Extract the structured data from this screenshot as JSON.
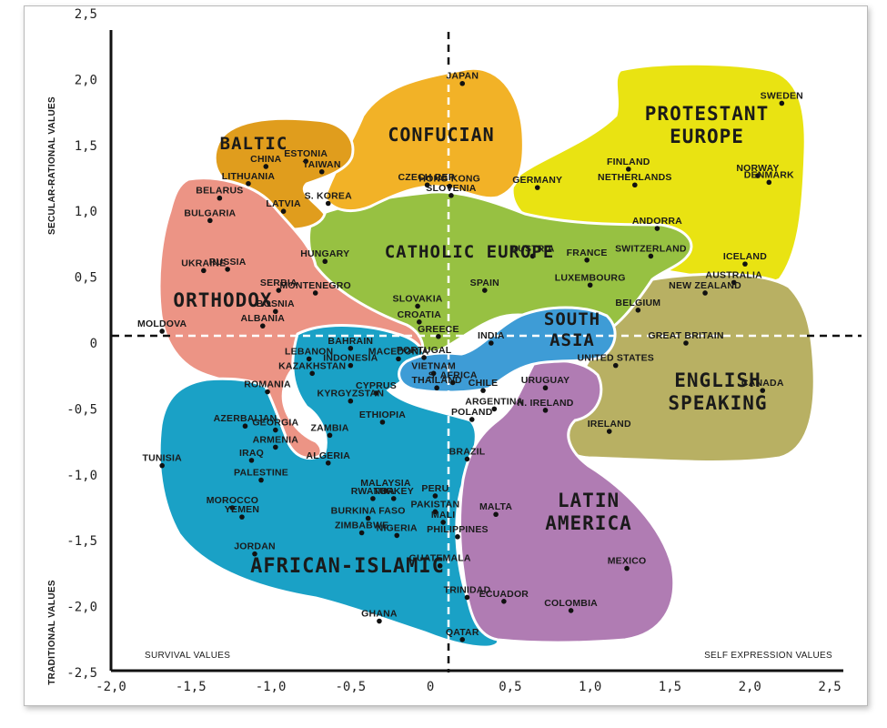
{
  "chart_data": {
    "type": "scatter",
    "xlim": [
      -2.0,
      2.5
    ],
    "ylim": [
      -2.5,
      2.5
    ],
    "x_ticks": [
      "-2,0",
      "-1,5",
      "-1,0",
      "-0,5",
      "0",
      "0,5",
      "1,0",
      "1,5",
      "2,0",
      "2,5"
    ],
    "y_ticks": [
      "2,5",
      "2,0",
      "1,5",
      "1,0",
      "0,5",
      "0",
      "-0,5",
      "-1,0",
      "-1,5",
      "-2,0",
      "-2,5"
    ],
    "y_label_top": "SECULAR-RATIONAL VALUES",
    "y_label_bottom": "TRADITIONAL VALUES",
    "x_label_left": "SURVIVAL VALUES",
    "x_label_right": "SELF EXPRESSION VALUES",
    "regions": [
      {
        "name": "PROTESTANT\nEUROPE",
        "color": "#e9e312"
      },
      {
        "name": "ENGLISH\nSPEAKING",
        "color": "#b8b063"
      },
      {
        "name": "CATHOLIC EUROPE",
        "color": "#97c142"
      },
      {
        "name": "CONFUCIAN",
        "color": "#f2b227"
      },
      {
        "name": "BALTIC",
        "color": "#e09d1d"
      },
      {
        "name": "ORTHODOX",
        "color": "#ec9485"
      },
      {
        "name": "AFRICAN-ISLAMIC",
        "color": "#1aa1c6"
      },
      {
        "name": "LATIN\nAMERICA",
        "color": "#b07cb3"
      },
      {
        "name": "SOUTH\nASIA",
        "color": "#3e9cd6"
      }
    ],
    "points": [
      {
        "name": "JAPAN",
        "x": 0.2,
        "y": 1.97
      },
      {
        "name": "SWEDEN",
        "x": 2.2,
        "y": 1.82
      },
      {
        "name": "ESTONIA",
        "x": -0.78,
        "y": 1.38
      },
      {
        "name": "LITHUANIA",
        "x": -1.14,
        "y": 1.21
      },
      {
        "name": "CHINA",
        "x": -1.03,
        "y": 1.34
      },
      {
        "name": "TAIWAN",
        "x": -0.68,
        "y": 1.3
      },
      {
        "name": "HONG KONG",
        "x": 0.12,
        "y": 1.19
      },
      {
        "name": "CZECH REP.",
        "x": -0.02,
        "y": 1.2
      },
      {
        "name": "SLOVENIA",
        "x": 0.13,
        "y": 1.12
      },
      {
        "name": "FINLAND",
        "x": 1.24,
        "y": 1.32
      },
      {
        "name": "NORWAY",
        "x": 2.05,
        "y": 1.27
      },
      {
        "name": "NETHERLANDS",
        "x": 1.28,
        "y": 1.2
      },
      {
        "name": "DENMARK",
        "x": 2.12,
        "y": 1.22
      },
      {
        "name": "GERMANY",
        "x": 0.67,
        "y": 1.18
      },
      {
        "name": "BELARUS",
        "x": -1.32,
        "y": 1.1
      },
      {
        "name": "BULGARIA",
        "x": -1.38,
        "y": 0.93
      },
      {
        "name": "LATVIA",
        "x": -0.92,
        "y": 1.0
      },
      {
        "name": "S. KOREA",
        "x": -0.64,
        "y": 1.06
      },
      {
        "name": "ANDORRA",
        "x": 1.42,
        "y": 0.87
      },
      {
        "name": "HUNGARY",
        "x": -0.66,
        "y": 0.62
      },
      {
        "name": "UKRAINE",
        "x": -1.42,
        "y": 0.55
      },
      {
        "name": "RUSSIA",
        "x": -1.27,
        "y": 0.56
      },
      {
        "name": "AUSTRIA",
        "x": 0.64,
        "y": 0.66
      },
      {
        "name": "FRANCE",
        "x": 0.98,
        "y": 0.63
      },
      {
        "name": "SWITZERLAND",
        "x": 1.38,
        "y": 0.66
      },
      {
        "name": "ICELAND",
        "x": 1.97,
        "y": 0.6
      },
      {
        "name": "LUXEMBOURG",
        "x": 1.0,
        "y": 0.44
      },
      {
        "name": "AUSTRALIA",
        "x": 1.9,
        "y": 0.46
      },
      {
        "name": "SERBIA",
        "x": -0.95,
        "y": 0.4
      },
      {
        "name": "MONTENEGRO",
        "x": -0.72,
        "y": 0.38
      },
      {
        "name": "SLOVAKIA",
        "x": -0.08,
        "y": 0.28
      },
      {
        "name": "SPAIN",
        "x": 0.34,
        "y": 0.4
      },
      {
        "name": "NEW ZEALAND",
        "x": 1.72,
        "y": 0.38
      },
      {
        "name": "BELGIUM",
        "x": 1.3,
        "y": 0.25
      },
      {
        "name": "BOSNIA",
        "x": -0.97,
        "y": 0.24
      },
      {
        "name": "ALBANIA",
        "x": -1.05,
        "y": 0.13
      },
      {
        "name": "MOLDOVA",
        "x": -1.68,
        "y": 0.09
      },
      {
        "name": "CROATIA",
        "x": -0.07,
        "y": 0.16
      },
      {
        "name": "GREECE",
        "x": 0.05,
        "y": 0.05
      },
      {
        "name": "INDIA",
        "x": 0.38,
        "y": 0.0
      },
      {
        "name": "GREAT BRITAIN",
        "x": 1.6,
        "y": 0.0
      },
      {
        "name": "BAHRAIN",
        "x": -0.5,
        "y": -0.04
      },
      {
        "name": "LEBANON",
        "x": -0.76,
        "y": -0.12
      },
      {
        "name": "MACEDONIA",
        "x": -0.2,
        "y": -0.12
      },
      {
        "name": "PORTUGAL",
        "x": -0.04,
        "y": -0.11
      },
      {
        "name": "KAZAKHSTAN",
        "x": -0.74,
        "y": -0.23
      },
      {
        "name": "INDONESIA",
        "x": -0.5,
        "y": -0.17
      },
      {
        "name": "VIETNAM",
        "x": 0.02,
        "y": -0.23
      },
      {
        "name": "UNITED STATES",
        "x": 1.16,
        "y": -0.17
      },
      {
        "name": "ROMANIA",
        "x": -1.02,
        "y": -0.37
      },
      {
        "name": "THAILAND",
        "x": 0.04,
        "y": -0.34
      },
      {
        "name": "S. AFRICA",
        "x": 0.14,
        "y": -0.3
      },
      {
        "name": "CHILE",
        "x": 0.33,
        "y": -0.36
      },
      {
        "name": "URUGUAY",
        "x": 0.72,
        "y": -0.34
      },
      {
        "name": "CYPRUS",
        "x": -0.34,
        "y": -0.38
      },
      {
        "name": "KYRGYZSTAN",
        "x": -0.5,
        "y": -0.44
      },
      {
        "name": "ARGENTINA",
        "x": 0.4,
        "y": -0.5
      },
      {
        "name": "N. IRELAND",
        "x": 0.72,
        "y": -0.51
      },
      {
        "name": "CANADA",
        "x": 2.08,
        "y": -0.36
      },
      {
        "name": "AZERBAIJAN",
        "x": -1.16,
        "y": -0.63
      },
      {
        "name": "GEORGIA",
        "x": -0.97,
        "y": -0.66
      },
      {
        "name": "ETHIOPIA",
        "x": -0.3,
        "y": -0.6
      },
      {
        "name": "POLAND",
        "x": 0.26,
        "y": -0.58
      },
      {
        "name": "ZAMBIA",
        "x": -0.63,
        "y": -0.7
      },
      {
        "name": "IRELAND",
        "x": 1.12,
        "y": -0.67
      },
      {
        "name": "TUNISIA",
        "x": -1.68,
        "y": -0.93
      },
      {
        "name": "ARMENIA",
        "x": -0.97,
        "y": -0.79
      },
      {
        "name": "IRAQ",
        "x": -1.12,
        "y": -0.89
      },
      {
        "name": "ALGERIA",
        "x": -0.64,
        "y": -0.91
      },
      {
        "name": "BRAZIL",
        "x": 0.23,
        "y": -0.88
      },
      {
        "name": "PALESTINE",
        "x": -1.06,
        "y": -1.04
      },
      {
        "name": "MALAYSIA",
        "x": -0.28,
        "y": -1.12
      },
      {
        "name": "PERU",
        "x": 0.03,
        "y": -1.16
      },
      {
        "name": "RWANDA",
        "x": -0.36,
        "y": -1.18
      },
      {
        "name": "TURKEY",
        "x": -0.23,
        "y": -1.18
      },
      {
        "name": "MALTA",
        "x": 0.41,
        "y": -1.3
      },
      {
        "name": "MOROCCO",
        "x": -1.24,
        "y": -1.25
      },
      {
        "name": "PAKISTAN",
        "x": 0.03,
        "y": -1.28
      },
      {
        "name": "BURKINA FASO",
        "x": -0.39,
        "y": -1.33
      },
      {
        "name": "YEMEN",
        "x": -1.18,
        "y": -1.32
      },
      {
        "name": "MALI",
        "x": 0.08,
        "y": -1.36
      },
      {
        "name": "ZIMBABWE",
        "x": -0.43,
        "y": -1.44
      },
      {
        "name": "NIGERIA",
        "x": -0.21,
        "y": -1.46
      },
      {
        "name": "PHILIPPINES",
        "x": 0.17,
        "y": -1.47
      },
      {
        "name": "JORDAN",
        "x": -1.1,
        "y": -1.6
      },
      {
        "name": "GUATEMALA",
        "x": 0.06,
        "y": -1.69
      },
      {
        "name": "MEXICO",
        "x": 1.23,
        "y": -1.71
      },
      {
        "name": "ECUADOR",
        "x": 0.46,
        "y": -1.96
      },
      {
        "name": "TRINIDAD",
        "x": 0.23,
        "y": -1.93
      },
      {
        "name": "COLOMBIA",
        "x": 0.88,
        "y": -2.03
      },
      {
        "name": "GHANA",
        "x": -0.32,
        "y": -2.11
      },
      {
        "name": "QATAR",
        "x": 0.2,
        "y": -2.25
      }
    ]
  }
}
